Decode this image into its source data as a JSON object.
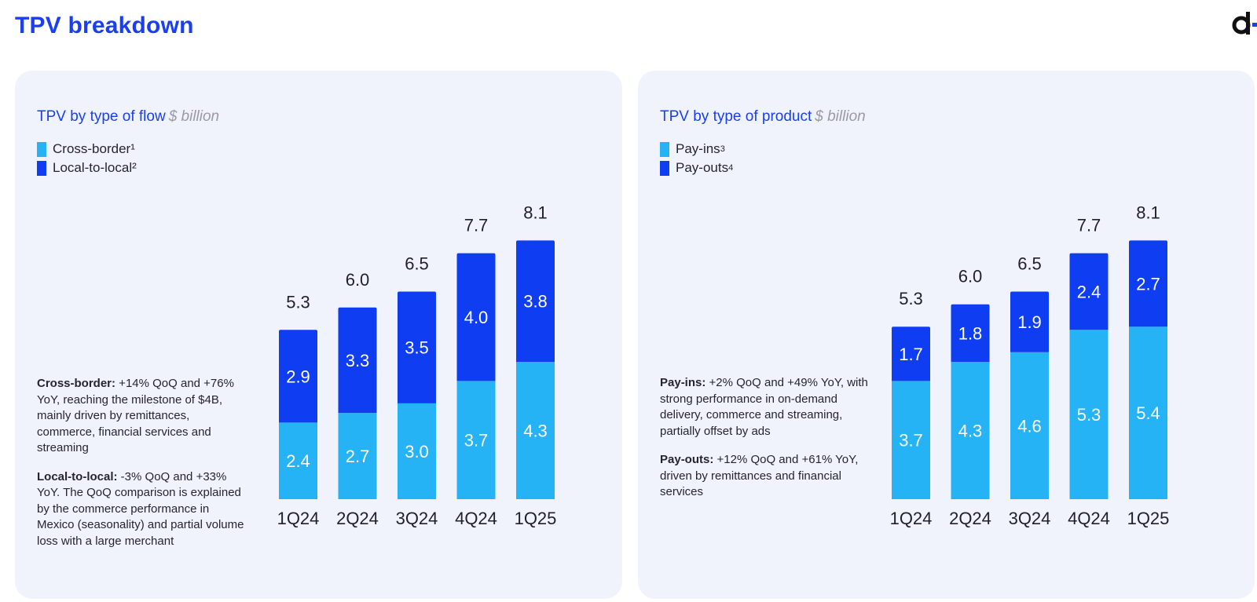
{
  "page": {
    "title": "TPV breakdown",
    "accent_color": "#1a3ff0",
    "logo_icon": "d-logo-icon"
  },
  "chart_data": [
    {
      "type": "bar",
      "stacked": true,
      "title": "TPV by type of flow",
      "unit": "$ billion",
      "categories": [
        "1Q24",
        "2Q24",
        "3Q24",
        "4Q24",
        "1Q25"
      ],
      "series": [
        {
          "name": "Cross-border",
          "footnote": "¹",
          "color": "#26b3f5",
          "values": [
            2.4,
            2.7,
            3.0,
            3.7,
            4.3
          ]
        },
        {
          "name": "Local-to-local",
          "footnote": "²",
          "color": "#0f3ef2",
          "values": [
            2.9,
            3.3,
            3.5,
            4.0,
            3.8
          ]
        }
      ],
      "totals": [
        "5.3",
        "6.0",
        "6.5",
        "7.7",
        "8.1"
      ],
      "segment_labels": [
        [
          "2.4",
          "2.7",
          "3.0",
          "3.7",
          "4.3"
        ],
        [
          "2.9",
          "3.3",
          "3.5",
          "4.0",
          "3.8"
        ]
      ],
      "ylim": [
        0,
        8.1
      ],
      "grid": false,
      "legend_position": "top-left",
      "notes": [
        {
          "label": "Cross-border:",
          "text": " +14% QoQ and +76% YoY, reaching the milestone of $4B, mainly driven by remittances, commerce, financial services and streaming"
        },
        {
          "label": "Local-to-local:",
          "text": " -3% QoQ and +33% YoY. The QoQ comparison is explained by the commerce performance in Mexico (seasonality) and partial volume loss with a large merchant"
        }
      ]
    },
    {
      "type": "bar",
      "stacked": true,
      "title": "TPV by type of product",
      "unit": "$ billion",
      "categories": [
        "1Q24",
        "2Q24",
        "3Q24",
        "4Q24",
        "1Q25"
      ],
      "series": [
        {
          "name": "Pay-ins",
          "footnote": "3",
          "color": "#26b3f5",
          "values": [
            3.7,
            4.3,
            4.6,
            5.3,
            5.4
          ]
        },
        {
          "name": "Pay-outs",
          "footnote": "4",
          "color": "#0f3ef2",
          "values": [
            1.7,
            1.8,
            1.9,
            2.4,
            2.7
          ]
        }
      ],
      "totals": [
        "5.3",
        "6.0",
        "6.5",
        "7.7",
        "8.1"
      ],
      "segment_labels": [
        [
          "3.7",
          "4.3",
          "4.6",
          "5.3",
          "5.4"
        ],
        [
          "1.7",
          "1.8",
          "1.9",
          "2.4",
          "2.7"
        ]
      ],
      "ylim": [
        0,
        8.1
      ],
      "grid": false,
      "legend_position": "top-left",
      "notes": [
        {
          "label": "Pay-ins:",
          "text": " +2% QoQ and +49% YoY, with strong performance in on-demand delivery, commerce and streaming, partially offset by ads"
        },
        {
          "label": "Pay-outs:",
          "text": " +12% QoQ and +61% YoY, driven by remittances and financial services"
        }
      ]
    }
  ]
}
